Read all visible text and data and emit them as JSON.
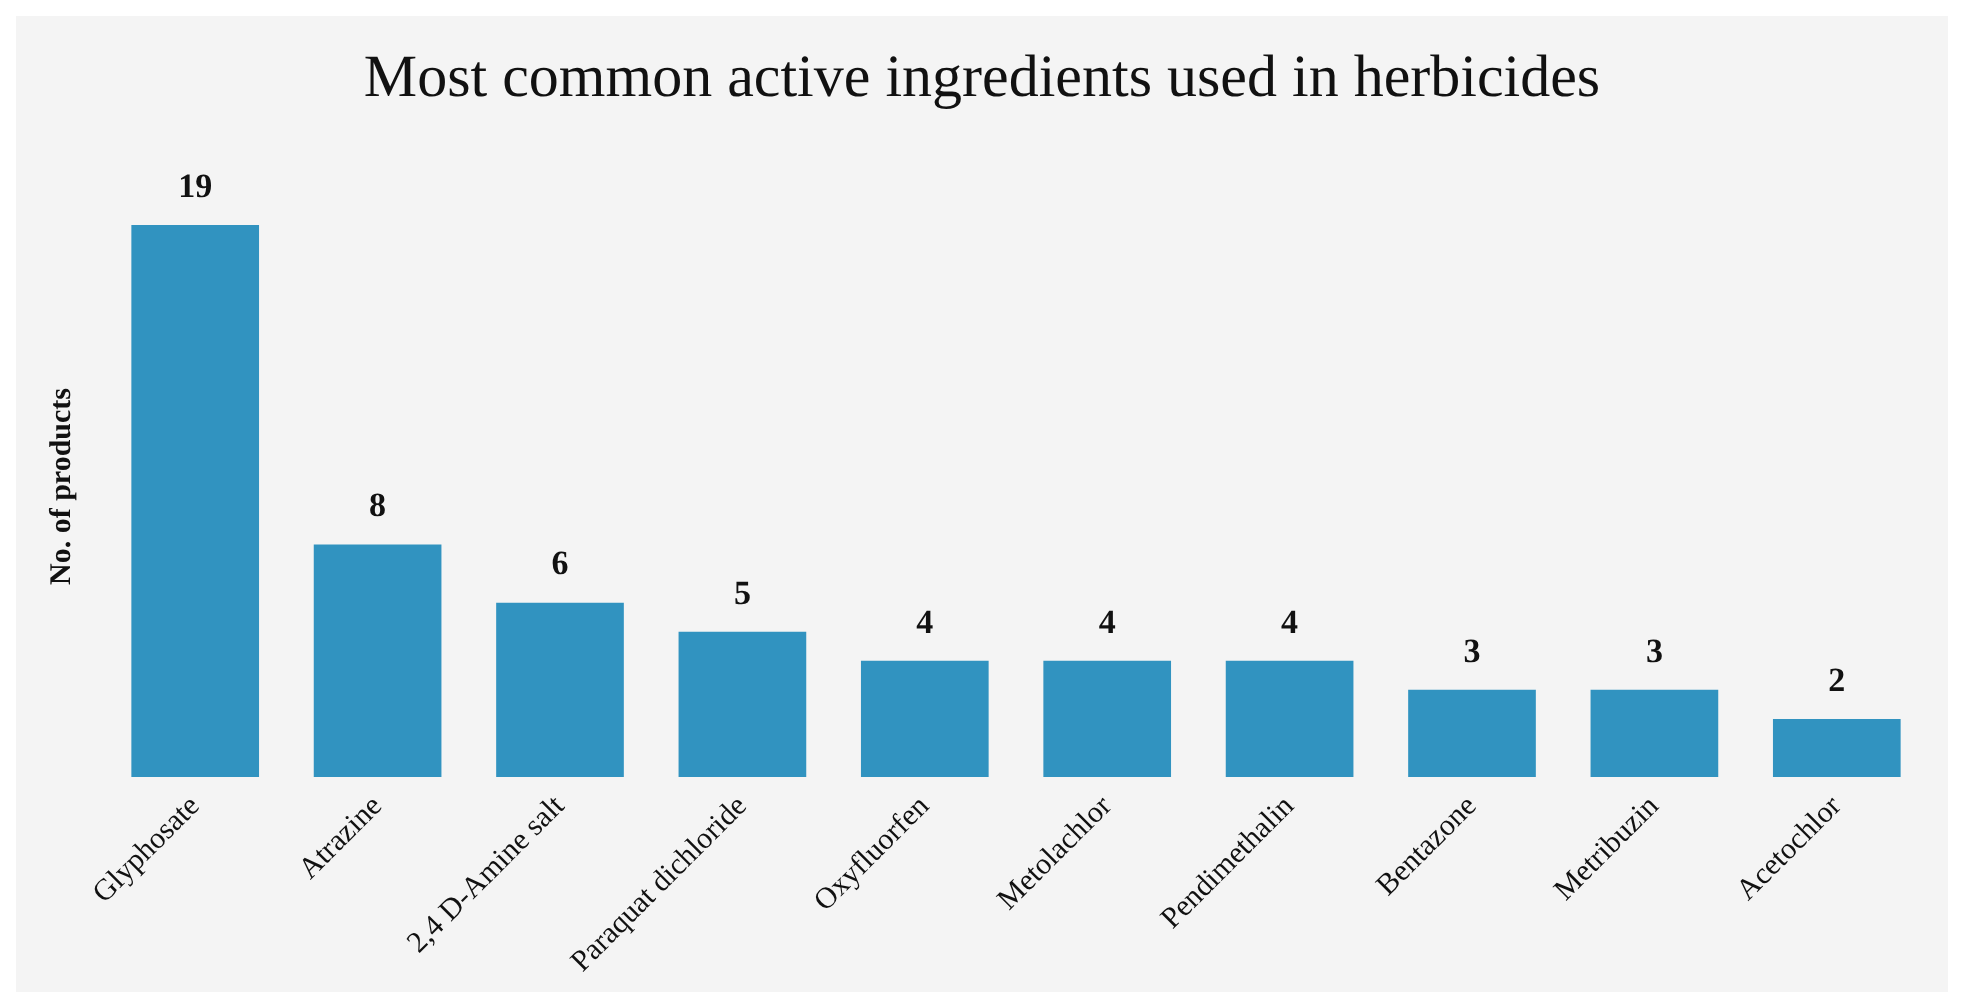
{
  "chart_data": {
    "type": "bar",
    "title": "Most common active ingredients used in herbicides",
    "ylabel": "No. of products",
    "categories": [
      "Glyphosate",
      "Atrazine",
      "2,4 D-Amine salt",
      "Paraquat dichloride",
      "Oxyfluorfen",
      "Metolachlor",
      "Pendimethalin",
      "Bentazone",
      "Metribuzin",
      "Acetochlor"
    ],
    "values": [
      19,
      8,
      6,
      5,
      4,
      4,
      4,
      3,
      3,
      2
    ],
    "color": "#3193c0",
    "data_labels": true,
    "grid": false,
    "legend": false
  }
}
